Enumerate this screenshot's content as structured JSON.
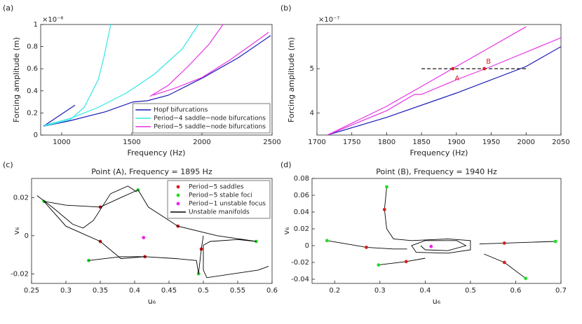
{
  "chart_data": [
    {
      "type": "line",
      "label": "(a)",
      "exponent": "×10⁻⁶",
      "xlabel": "Frequency (Hz)",
      "ylabel": "Forcing amplitude (m)",
      "xlim": [
        850,
        2500
      ],
      "xticks": [
        1000,
        1500,
        2000,
        2500
      ],
      "ylim": [
        0,
        1
      ],
      "yticks": [
        0,
        0.2,
        0.4,
        0.6,
        0.8,
        1
      ],
      "legend": "lower right",
      "series": [
        {
          "name": "Hopf bifurcations",
          "color": "#1a1ab8",
          "kind": "line",
          "x": [
            870,
            1095,
            null,
            870,
            1060,
            1310,
            1510,
            1610,
            1760,
            2010,
            2260,
            2490
          ],
          "values": [
            0.08,
            0.27,
            null,
            0.08,
            0.13,
            0.21,
            0.3,
            0.31,
            0.36,
            0.52,
            0.7,
            0.9
          ]
        },
        {
          "name": "Period−4 saddle−node bifurcations",
          "color": "#33e6e6",
          "kind": "line",
          "x": [
            870,
            1060,
            1160,
            1260,
            1300,
            1350,
            null,
            880,
            1060,
            1260,
            1460,
            1660,
            1860,
            1975
          ],
          "values": [
            0.08,
            0.14,
            0.25,
            0.5,
            0.7,
            1,
            null,
            0.09,
            0.15,
            0.25,
            0.38,
            0.55,
            0.78,
            1
          ]
        },
        {
          "name": "Period−5 saddle−node bifurcations",
          "color": "#e633e6",
          "kind": "line",
          "x": [
            1630,
            1760,
            1900,
            2050,
            2150,
            null,
            1650,
            1800,
            2000,
            2200,
            2400,
            2475
          ],
          "values": [
            0.35,
            0.45,
            0.62,
            0.82,
            1,
            null,
            0.36,
            0.42,
            0.52,
            0.68,
            0.86,
            0.93
          ]
        }
      ]
    },
    {
      "type": "line",
      "label": "(b)",
      "exponent": "×10⁻⁷",
      "xlabel": "Frequency (Hz)",
      "ylabel": "Forcing amplitude (m)",
      "xlim": [
        1700,
        2050
      ],
      "xticks": [
        1700,
        1750,
        1800,
        1850,
        1900,
        1950,
        2000,
        2050
      ],
      "ylim": [
        3.5,
        6
      ],
      "yticks": [
        4,
        5
      ],
      "series": [
        {
          "color": "#1a1ab8",
          "kind": "line",
          "x": [
            1715,
            1800,
            1900,
            2000,
            2050
          ],
          "values": [
            3.5,
            3.9,
            4.45,
            5.05,
            5.5
          ]
        },
        {
          "color": "#e633e6",
          "kind": "line",
          "x": [
            1715,
            1800,
            1850,
            1900,
            1950,
            2000
          ],
          "values": [
            3.5,
            4.15,
            4.6,
            5.05,
            5.5,
            5.95
          ]
        },
        {
          "color": "#e633e6",
          "kind": "line",
          "x": [
            1715,
            1800,
            1840,
            1850,
            1900,
            1950,
            2050
          ],
          "values": [
            3.5,
            4.05,
            4.42,
            4.42,
            4.75,
            5.05,
            5.7
          ]
        },
        {
          "color": "#000000",
          "kind": "line",
          "dash": true,
          "x": [
            1850,
            2000
          ],
          "values": [
            5,
            5
          ]
        }
      ],
      "annotations": [
        {
          "text": "A",
          "x": 1895,
          "y": 5,
          "color": "#d62020"
        },
        {
          "text": "B",
          "x": 1940,
          "y": 5,
          "color": "#d62020"
        }
      ]
    },
    {
      "type": "line",
      "label": "(c)",
      "title": "Point (A), Frequency = 1895 Hz",
      "xlabel": "u₆",
      "ylabel": "v₆",
      "xlim": [
        0.25,
        0.6
      ],
      "xticks": [
        0.25,
        0.3,
        0.35,
        0.4,
        0.45,
        0.5,
        0.55,
        0.6
      ],
      "ylim": [
        -0.025,
        0.03
      ],
      "yticks": [
        -0.02,
        0,
        0.02
      ],
      "legend": "upper right",
      "series": [
        {
          "name": "Period−5 saddles",
          "color": "#d62020",
          "kind": "marker",
          "x": [
            0.35,
            0.35,
            0.415,
            0.463,
            0.497
          ],
          "values": [
            0.015,
            -0.003,
            -0.011,
            0.005,
            -0.007
          ]
        },
        {
          "name": "Period−5 stable foci",
          "color": "#22dd22",
          "kind": "marker",
          "x": [
            0.268,
            0.405,
            0.333,
            0.577,
            0.493
          ],
          "values": [
            0.018,
            0.024,
            -0.013,
            -0.003,
            -0.02
          ]
        },
        {
          "name": "Period−1 unstable focus",
          "color": "#ee22ee",
          "kind": "marker",
          "x": [
            0.413
          ],
          "values": [
            -0.001
          ]
        },
        {
          "name": "Unstable manifolds",
          "color": "#000000",
          "kind": "line",
          "x": [
            0.268,
            0.3,
            0.35,
            0.38,
            0.405,
            null,
            0.258,
            0.28,
            0.31,
            0.325,
            0.34,
            0.365,
            0.39,
            0.403,
            null,
            0.268,
            0.3,
            0.35,
            0.38,
            0.415,
            0.46,
            0.49,
            0.493,
            null,
            0.333,
            0.38,
            0.415,
            null,
            0.405,
            0.42,
            0.463,
            0.52,
            0.577,
            null,
            0.5,
            0.497,
            0.493,
            null,
            0.577,
            0.55,
            0.51,
            0.5,
            0.5,
            0.505,
            0.58,
            0.595
          ],
          "values": [
            0.018,
            0.016,
            0.015,
            0.02,
            0.024,
            null,
            0.021,
            0.015,
            0.006,
            0.004,
            0.008,
            0.022,
            0.026,
            0.023,
            null,
            0.018,
            0.005,
            -0.003,
            -0.012,
            -0.011,
            -0.012,
            -0.013,
            -0.02,
            null,
            -0.013,
            -0.011,
            -0.011,
            null,
            0.024,
            0.015,
            0.005,
            0,
            -0.003,
            null,
            0,
            -0.007,
            -0.02,
            null,
            -0.003,
            -0.002,
            -0.003,
            -0.005,
            -0.018,
            -0.022,
            -0.018,
            -0.016
          ]
        }
      ]
    },
    {
      "type": "line",
      "label": "(d)",
      "title": "Point (B), Frequency = 1940 Hz",
      "xlabel": "u₆",
      "ylabel": "v₆",
      "xlim": [
        0.15,
        0.7
      ],
      "xticks": [
        0.2,
        0.3,
        0.4,
        0.5,
        0.6,
        0.7
      ],
      "ylim": [
        -0.045,
        0.08
      ],
      "yticks": [
        -0.04,
        -0.02,
        0,
        0.02,
        0.04,
        0.06,
        0.08
      ],
      "series": [
        {
          "color": "#000000",
          "kind": "line",
          "x": [
            0.31,
            0.315,
            0.33,
            0.37,
            0.45,
            0.5,
            0.5,
            0.45,
            0.38,
            0.37,
            0.4,
            0.47,
            0.49,
            0.45,
            0.4,
            0.39,
            null,
            0.315,
            0.31,
            null,
            0.183,
            0.27,
            0.33,
            0.36,
            null,
            0.297,
            0.358,
            0.4,
            null,
            0.688,
            0.575,
            0.52,
            null,
            0.622,
            0.575,
            0.53
          ],
          "values": [
            0.043,
            0.02,
            0.008,
            0.006,
            0.008,
            0.006,
            -0.005,
            -0.009,
            -0.008,
            0,
            0.006,
            0.006,
            0,
            -0.006,
            -0.005,
            0,
            null,
            0.07,
            0.043,
            null,
            0.006,
            -0.002,
            -0.004,
            -0.004,
            null,
            -0.023,
            -0.019,
            -0.015,
            null,
            0.005,
            0.003,
            0.002,
            null,
            -0.039,
            -0.02,
            -0.01
          ]
        },
        {
          "color": "#d62020",
          "kind": "marker",
          "x": [
            0.31,
            0.27,
            0.358,
            0.575,
            0.575
          ],
          "values": [
            0.043,
            -0.002,
            -0.019,
            0.003,
            -0.02
          ]
        },
        {
          "color": "#22dd22",
          "kind": "marker",
          "x": [
            0.315,
            0.183,
            0.297,
            0.688,
            0.622
          ],
          "values": [
            0.07,
            0.006,
            -0.023,
            0.005,
            -0.039
          ]
        },
        {
          "color": "#ee22ee",
          "kind": "marker",
          "x": [
            0.413
          ],
          "values": [
            -0.001
          ]
        }
      ]
    }
  ]
}
